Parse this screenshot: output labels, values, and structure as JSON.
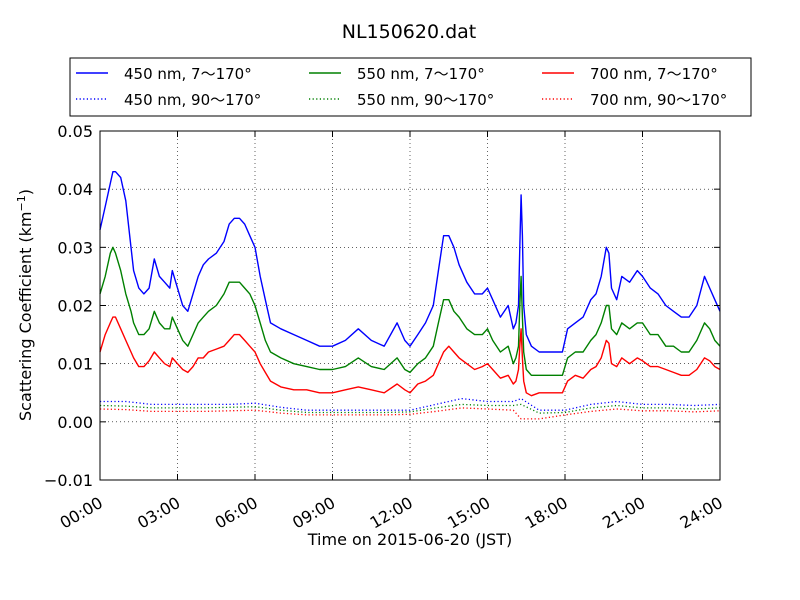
{
  "chart_data": {
    "type": "line",
    "title": "NL150620.dat",
    "xlabel": "Time on 2015-06-20 (JST)",
    "ylabel": "Scattering Coefficient (km",
    "ylabel_sup": "−1",
    "ylabel_close": ")",
    "xlim": [
      0,
      24
    ],
    "ylim": [
      -0.01,
      0.05
    ],
    "x_ticks": [
      0,
      3,
      6,
      9,
      12,
      15,
      18,
      21,
      24
    ],
    "x_tick_labels": [
      "00:00",
      "03:00",
      "06:00",
      "09:00",
      "12:00",
      "15:00",
      "18:00",
      "21:00",
      "24:00"
    ],
    "y_ticks": [
      -0.01,
      0.0,
      0.01,
      0.02,
      0.03,
      0.04,
      0.05
    ],
    "y_tick_labels": [
      "−0.01",
      "0.00",
      "0.01",
      "0.02",
      "0.03",
      "0.04",
      "0.05"
    ],
    "grid": true,
    "legend_position": "top, above plot",
    "series": [
      {
        "name": "450 nm, 7～170°",
        "color": "#0000ff",
        "style": "solid",
        "x": [
          0,
          0.2,
          0.4,
          0.5,
          0.6,
          0.8,
          1,
          1.2,
          1.3,
          1.5,
          1.7,
          1.9,
          2.1,
          2.3,
          2.5,
          2.7,
          2.8,
          3,
          3.2,
          3.4,
          3.6,
          3.8,
          4,
          4.2,
          4.5,
          4.8,
          5,
          5.2,
          5.4,
          5.6,
          5.8,
          6,
          6.2,
          6.4,
          6.6,
          7,
          7.5,
          8,
          8.5,
          9,
          9.5,
          10,
          10.5,
          11,
          11.5,
          11.8,
          12,
          12.3,
          12.6,
          12.9,
          13.1,
          13.3,
          13.5,
          13.7,
          13.9,
          14.2,
          14.5,
          14.8,
          15,
          15.2,
          15.5,
          15.8,
          16,
          16.1,
          16.2,
          16.25,
          16.3,
          16.35,
          16.4,
          16.5,
          16.7,
          17,
          17.3,
          17.6,
          17.9,
          18.1,
          18.4,
          18.7,
          19,
          19.2,
          19.4,
          19.6,
          19.7,
          19.8,
          20,
          20.2,
          20.5,
          20.8,
          21,
          21.3,
          21.6,
          21.9,
          22.2,
          22.5,
          22.8,
          23.1,
          23.4,
          23.6,
          23.8,
          24
        ],
        "y": [
          0.033,
          0.037,
          0.041,
          0.043,
          0.043,
          0.042,
          0.038,
          0.03,
          0.026,
          0.023,
          0.022,
          0.023,
          0.028,
          0.025,
          0.024,
          0.023,
          0.026,
          0.023,
          0.02,
          0.019,
          0.022,
          0.025,
          0.027,
          0.028,
          0.029,
          0.031,
          0.034,
          0.035,
          0.035,
          0.034,
          0.032,
          0.03,
          0.025,
          0.021,
          0.017,
          0.016,
          0.015,
          0.014,
          0.013,
          0.013,
          0.014,
          0.016,
          0.014,
          0.013,
          0.017,
          0.014,
          0.013,
          0.015,
          0.017,
          0.02,
          0.026,
          0.032,
          0.032,
          0.03,
          0.027,
          0.024,
          0.022,
          0.022,
          0.023,
          0.021,
          0.018,
          0.02,
          0.016,
          0.017,
          0.02,
          0.03,
          0.039,
          0.032,
          0.02,
          0.015,
          0.013,
          0.012,
          0.012,
          0.012,
          0.012,
          0.016,
          0.017,
          0.018,
          0.021,
          0.022,
          0.025,
          0.03,
          0.029,
          0.023,
          0.021,
          0.025,
          0.024,
          0.026,
          0.025,
          0.023,
          0.022,
          0.02,
          0.019,
          0.018,
          0.018,
          0.02,
          0.025,
          0.023,
          0.021,
          0.019
        ]
      },
      {
        "name": "550 nm, 7～170°",
        "color": "#008000",
        "style": "solid",
        "x": [
          0,
          0.2,
          0.4,
          0.5,
          0.6,
          0.8,
          1,
          1.2,
          1.3,
          1.5,
          1.7,
          1.9,
          2.1,
          2.3,
          2.5,
          2.7,
          2.8,
          3,
          3.2,
          3.4,
          3.6,
          3.8,
          4,
          4.2,
          4.5,
          4.8,
          5,
          5.2,
          5.4,
          5.6,
          5.8,
          6,
          6.2,
          6.4,
          6.6,
          7,
          7.5,
          8,
          8.5,
          9,
          9.5,
          10,
          10.5,
          11,
          11.5,
          11.8,
          12,
          12.3,
          12.6,
          12.9,
          13.1,
          13.3,
          13.5,
          13.7,
          13.9,
          14.2,
          14.5,
          14.8,
          15,
          15.2,
          15.5,
          15.8,
          16,
          16.1,
          16.2,
          16.25,
          16.3,
          16.35,
          16.4,
          16.5,
          16.7,
          17,
          17.3,
          17.6,
          17.9,
          18.1,
          18.4,
          18.7,
          19,
          19.2,
          19.4,
          19.6,
          19.7,
          19.8,
          20,
          20.2,
          20.5,
          20.8,
          21,
          21.3,
          21.6,
          21.9,
          22.2,
          22.5,
          22.8,
          23.1,
          23.4,
          23.6,
          23.8,
          24
        ],
        "y": [
          0.022,
          0.025,
          0.029,
          0.03,
          0.029,
          0.026,
          0.022,
          0.019,
          0.017,
          0.015,
          0.015,
          0.016,
          0.019,
          0.017,
          0.016,
          0.016,
          0.018,
          0.016,
          0.014,
          0.013,
          0.015,
          0.017,
          0.018,
          0.019,
          0.02,
          0.022,
          0.024,
          0.024,
          0.024,
          0.023,
          0.022,
          0.02,
          0.017,
          0.014,
          0.012,
          0.011,
          0.01,
          0.0095,
          0.009,
          0.009,
          0.0095,
          0.011,
          0.0095,
          0.009,
          0.011,
          0.009,
          0.0085,
          0.01,
          0.011,
          0.013,
          0.017,
          0.021,
          0.021,
          0.019,
          0.018,
          0.016,
          0.015,
          0.015,
          0.016,
          0.014,
          0.012,
          0.013,
          0.01,
          0.011,
          0.013,
          0.02,
          0.025,
          0.018,
          0.012,
          0.009,
          0.008,
          0.008,
          0.008,
          0.008,
          0.008,
          0.011,
          0.012,
          0.012,
          0.014,
          0.015,
          0.017,
          0.02,
          0.02,
          0.016,
          0.015,
          0.017,
          0.016,
          0.017,
          0.017,
          0.015,
          0.015,
          0.013,
          0.013,
          0.012,
          0.012,
          0.014,
          0.017,
          0.016,
          0.014,
          0.013
        ]
      },
      {
        "name": "700 nm, 7～170°",
        "color": "#ff0000",
        "style": "solid",
        "x": [
          0,
          0.2,
          0.4,
          0.5,
          0.6,
          0.8,
          1,
          1.2,
          1.3,
          1.5,
          1.7,
          1.9,
          2.1,
          2.3,
          2.5,
          2.7,
          2.8,
          3,
          3.2,
          3.4,
          3.6,
          3.8,
          4,
          4.2,
          4.5,
          4.8,
          5,
          5.2,
          5.4,
          5.6,
          5.8,
          6,
          6.2,
          6.4,
          6.6,
          7,
          7.5,
          8,
          8.5,
          9,
          9.5,
          10,
          10.5,
          11,
          11.5,
          11.8,
          12,
          12.3,
          12.6,
          12.9,
          13.1,
          13.3,
          13.5,
          13.7,
          13.9,
          14.2,
          14.5,
          14.8,
          15,
          15.2,
          15.5,
          15.8,
          16,
          16.1,
          16.2,
          16.25,
          16.3,
          16.35,
          16.4,
          16.5,
          16.7,
          17,
          17.3,
          17.6,
          17.9,
          18.1,
          18.4,
          18.7,
          19,
          19.2,
          19.4,
          19.6,
          19.7,
          19.8,
          20,
          20.2,
          20.5,
          20.8,
          21,
          21.3,
          21.6,
          21.9,
          22.2,
          22.5,
          22.8,
          23.1,
          23.4,
          23.6,
          23.8,
          24
        ],
        "y": [
          0.012,
          0.015,
          0.017,
          0.018,
          0.018,
          0.016,
          0.014,
          0.012,
          0.011,
          0.0095,
          0.0095,
          0.0105,
          0.012,
          0.011,
          0.01,
          0.0095,
          0.011,
          0.01,
          0.009,
          0.0085,
          0.0095,
          0.011,
          0.011,
          0.012,
          0.0125,
          0.013,
          0.014,
          0.015,
          0.015,
          0.014,
          0.013,
          0.012,
          0.01,
          0.0085,
          0.007,
          0.006,
          0.0055,
          0.0055,
          0.005,
          0.005,
          0.0055,
          0.006,
          0.0055,
          0.005,
          0.0065,
          0.0055,
          0.005,
          0.0065,
          0.007,
          0.008,
          0.01,
          0.012,
          0.013,
          0.012,
          0.011,
          0.01,
          0.009,
          0.0095,
          0.01,
          0.009,
          0.0075,
          0.008,
          0.0065,
          0.007,
          0.009,
          0.013,
          0.016,
          0.011,
          0.007,
          0.005,
          0.0045,
          0.005,
          0.005,
          0.005,
          0.005,
          0.007,
          0.008,
          0.0075,
          0.009,
          0.0095,
          0.011,
          0.014,
          0.0135,
          0.01,
          0.0095,
          0.011,
          0.01,
          0.011,
          0.0105,
          0.0095,
          0.0095,
          0.009,
          0.0085,
          0.008,
          0.008,
          0.009,
          0.011,
          0.0105,
          0.0095,
          0.009
        ]
      },
      {
        "name": "450 nm, 90～170°",
        "color": "#0000ff",
        "style": "dotted",
        "x": [
          0,
          1,
          2,
          3,
          4,
          5,
          6,
          7,
          8,
          9,
          10,
          11,
          12,
          13,
          14,
          15,
          16,
          16.3,
          17,
          18,
          19,
          20,
          21,
          22,
          23,
          24
        ],
        "y": [
          0.0035,
          0.0035,
          0.003,
          0.003,
          0.003,
          0.003,
          0.0032,
          0.0025,
          0.002,
          0.002,
          0.002,
          0.002,
          0.002,
          0.003,
          0.004,
          0.0035,
          0.0035,
          0.004,
          0.002,
          0.002,
          0.003,
          0.0035,
          0.003,
          0.003,
          0.0028,
          0.003
        ]
      },
      {
        "name": "550 nm, 90～170°",
        "color": "#008000",
        "style": "dotted",
        "x": [
          0,
          1,
          2,
          3,
          4,
          5,
          6,
          7,
          8,
          9,
          10,
          11,
          12,
          13,
          14,
          15,
          16,
          16.3,
          17,
          18,
          19,
          20,
          21,
          22,
          23,
          24
        ],
        "y": [
          0.0028,
          0.0027,
          0.0024,
          0.0024,
          0.0024,
          0.0025,
          0.0026,
          0.002,
          0.0016,
          0.0016,
          0.0016,
          0.0016,
          0.0017,
          0.0024,
          0.003,
          0.0028,
          0.0028,
          0.003,
          0.0015,
          0.0016,
          0.0024,
          0.0028,
          0.0024,
          0.0024,
          0.0022,
          0.0024
        ]
      },
      {
        "name": "700 nm, 90～170°",
        "color": "#ff0000",
        "style": "dotted",
        "x": [
          0,
          1,
          2,
          3,
          4,
          5,
          6,
          7,
          8,
          9,
          10,
          11,
          12,
          13,
          14,
          15,
          16,
          16.3,
          17,
          18,
          19,
          20,
          21,
          22,
          23,
          24
        ],
        "y": [
          0.0022,
          0.0021,
          0.0018,
          0.0018,
          0.0018,
          0.0019,
          0.002,
          0.0015,
          0.0012,
          0.0012,
          0.0012,
          0.0012,
          0.0013,
          0.0018,
          0.0024,
          0.0022,
          0.002,
          0.0005,
          0.0005,
          0.0012,
          0.0018,
          0.0022,
          0.0019,
          0.0019,
          0.0017,
          0.0019
        ]
      }
    ]
  }
}
